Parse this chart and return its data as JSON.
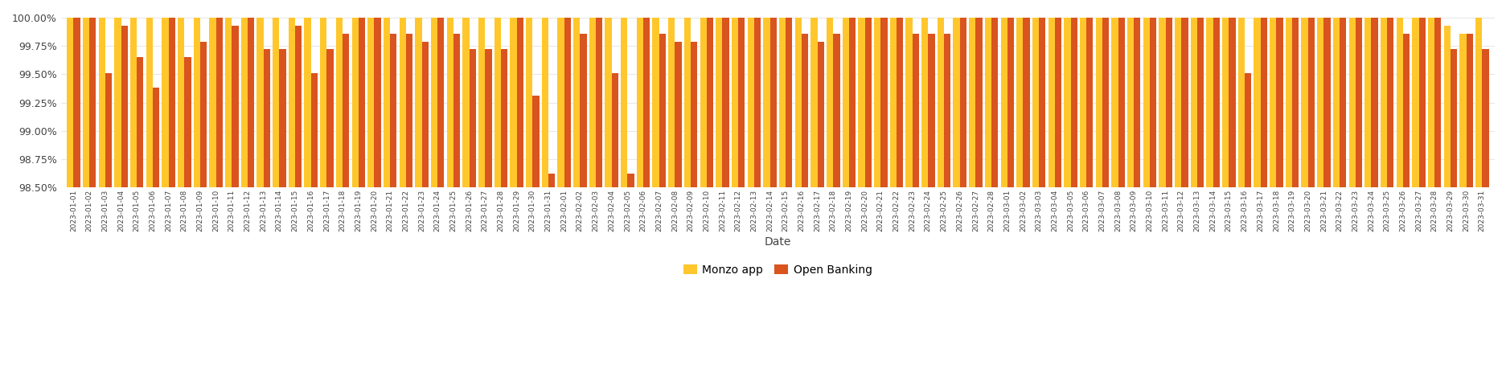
{
  "dates": [
    "2023-01-01",
    "2023-01-02",
    "2023-01-03",
    "2023-01-04",
    "2023-01-05",
    "2023-01-06",
    "2023-01-07",
    "2023-01-08",
    "2023-01-09",
    "2023-01-10",
    "2023-01-11",
    "2023-01-12",
    "2023-01-13",
    "2023-01-14",
    "2023-01-15",
    "2023-01-16",
    "2023-01-17",
    "2023-01-18",
    "2023-01-19",
    "2023-01-20",
    "2023-01-21",
    "2023-01-22",
    "2023-01-23",
    "2023-01-24",
    "2023-01-25",
    "2023-01-26",
    "2023-01-27",
    "2023-01-28",
    "2023-01-29",
    "2023-01-30",
    "2023-01-31",
    "2023-02-01",
    "2023-02-02",
    "2023-02-03",
    "2023-02-04",
    "2023-02-05",
    "2023-02-06",
    "2023-02-07",
    "2023-02-08",
    "2023-02-09",
    "2023-02-10",
    "2023-02-11",
    "2023-02-12",
    "2023-02-13",
    "2023-02-14",
    "2023-02-15",
    "2023-02-16",
    "2023-02-17",
    "2023-02-18",
    "2023-02-19",
    "2023-02-20",
    "2023-02-21",
    "2023-02-22",
    "2023-02-23",
    "2023-02-24",
    "2023-02-25",
    "2023-02-26",
    "2023-02-27",
    "2023-02-28",
    "2023-03-01",
    "2023-03-02",
    "2023-03-03",
    "2023-03-04",
    "2023-03-05",
    "2023-03-06",
    "2023-03-07",
    "2023-03-08",
    "2023-03-09",
    "2023-03-10",
    "2023-03-11",
    "2023-03-12",
    "2023-03-13",
    "2023-03-14",
    "2023-03-15",
    "2023-03-16",
    "2023-03-17",
    "2023-03-18",
    "2023-03-19",
    "2023-03-20",
    "2023-03-21",
    "2023-03-22",
    "2023-03-23",
    "2023-03-24",
    "2023-03-25",
    "2023-03-26",
    "2023-03-27",
    "2023-03-28",
    "2023-03-29",
    "2023-03-30",
    "2023-03-31"
  ],
  "monzo_app": [
    100.0,
    100.0,
    100.0,
    100.0,
    100.0,
    100.0,
    100.0,
    100.0,
    100.0,
    100.0,
    100.0,
    100.0,
    100.0,
    100.0,
    100.0,
    100.0,
    100.0,
    100.0,
    100.0,
    100.0,
    100.0,
    100.0,
    100.0,
    100.0,
    100.0,
    100.0,
    100.0,
    100.0,
    100.0,
    100.0,
    100.0,
    100.0,
    100.0,
    100.0,
    100.0,
    100.0,
    100.0,
    100.0,
    100.0,
    100.0,
    100.0,
    100.0,
    100.0,
    100.0,
    100.0,
    100.0,
    100.0,
    100.0,
    100.0,
    100.0,
    100.0,
    100.0,
    100.0,
    100.0,
    100.0,
    100.0,
    100.0,
    100.0,
    100.0,
    100.0,
    100.0,
    100.0,
    100.0,
    100.0,
    100.0,
    100.0,
    100.0,
    100.0,
    100.0,
    100.0,
    100.0,
    100.0,
    100.0,
    100.0,
    100.0,
    100.0,
    100.0,
    100.0,
    100.0,
    100.0,
    100.0,
    100.0,
    100.0,
    100.0,
    100.0,
    100.0,
    100.0,
    99.93,
    99.86,
    100.0
  ],
  "open_banking": [
    100.0,
    100.0,
    99.51,
    99.93,
    99.65,
    99.38,
    100.0,
    99.65,
    99.79,
    100.0,
    99.93,
    100.0,
    99.72,
    99.72,
    99.93,
    99.51,
    99.72,
    99.86,
    100.0,
    100.0,
    99.86,
    99.86,
    99.79,
    100.0,
    99.86,
    99.72,
    99.72,
    99.72,
    100.0,
    99.31,
    98.62,
    100.0,
    99.86,
    100.0,
    99.51,
    98.62,
    100.0,
    99.86,
    99.79,
    99.79,
    100.0,
    100.0,
    100.0,
    100.0,
    100.0,
    100.0,
    99.86,
    99.79,
    99.86,
    100.0,
    100.0,
    100.0,
    100.0,
    99.86,
    99.86,
    99.86,
    100.0,
    100.0,
    100.0,
    100.0,
    100.0,
    100.0,
    100.0,
    100.0,
    100.0,
    100.0,
    100.0,
    100.0,
    100.0,
    100.0,
    100.0,
    100.0,
    100.0,
    100.0,
    99.51,
    100.0,
    100.0,
    100.0,
    100.0,
    100.0,
    100.0,
    100.0,
    100.0,
    100.0,
    99.86,
    100.0,
    100.0,
    99.72,
    99.86,
    99.72
  ],
  "monzo_color": "#FFC72C",
  "open_banking_color": "#D9541E",
  "background_color": "#FFFFFF",
  "xlabel": "Date",
  "ylim_min": 98.5,
  "ylim_max": 100.05,
  "yticks": [
    98.5,
    98.75,
    99.0,
    99.25,
    99.5,
    99.75,
    100.0
  ],
  "legend_labels": [
    "Monzo app",
    "Open Banking"
  ],
  "bar_width": 0.42
}
